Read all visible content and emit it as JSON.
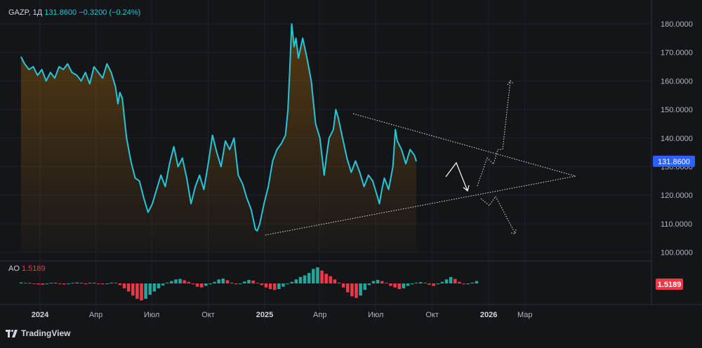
{
  "legend": {
    "symbol": "GAZP, 1Д",
    "price": "131.8600",
    "change": "−0.3200 (−0.24%)"
  },
  "ao_legend": {
    "name": "AO",
    "value": "1.5189"
  },
  "branding": {
    "text": "TradingView"
  },
  "colors": {
    "background": "#141519",
    "line": "#26c6da",
    "price_badge": "#2962ff",
    "ao_up": "#26a69a",
    "ao_down": "#f23645",
    "text": "#d1d4dc",
    "axis_text": "#b2b5be"
  },
  "chart_data": [
    {
      "type": "area",
      "title": "",
      "ylim": [
        98,
        184
      ],
      "y_ticks": [
        100,
        110,
        120,
        130,
        140,
        150,
        160,
        170,
        180
      ],
      "x_ticks": [
        {
          "date": "2024-01-01",
          "label": "2024",
          "bold": true
        },
        {
          "date": "2024-04-01",
          "label": "Апр",
          "bold": false
        },
        {
          "date": "2024-07-01",
          "label": "Июл",
          "bold": false
        },
        {
          "date": "2024-10-01",
          "label": "Окт",
          "bold": false
        },
        {
          "date": "2025-01-01",
          "label": "2025",
          "bold": true
        },
        {
          "date": "2025-04-01",
          "label": "Апр",
          "bold": false
        },
        {
          "date": "2025-07-01",
          "label": "Июл",
          "bold": false
        },
        {
          "date": "2025-10-01",
          "label": "Окт",
          "bold": false
        },
        {
          "date": "2026-01-01",
          "label": "2026",
          "bold": true
        },
        {
          "date": "2026-03-01",
          "label": "Мар",
          "bold": false
        }
      ],
      "last_price": {
        "value": 131.86,
        "label": "131.8600"
      },
      "series": [
        {
          "points": [
            [
              "2023-12-01",
              168.5
            ],
            [
              "2023-12-07",
              166
            ],
            [
              "2023-12-14",
              164
            ],
            [
              "2023-12-21",
              165
            ],
            [
              "2023-12-28",
              162
            ],
            [
              "2024-01-04",
              164
            ],
            [
              "2024-01-11",
              160
            ],
            [
              "2024-01-18",
              163
            ],
            [
              "2024-01-25",
              161
            ],
            [
              "2024-02-01",
              165
            ],
            [
              "2024-02-08",
              164
            ],
            [
              "2024-02-15",
              166
            ],
            [
              "2024-02-22",
              163
            ],
            [
              "2024-03-01",
              162
            ],
            [
              "2024-03-08",
              160
            ],
            [
              "2024-03-15",
              163
            ],
            [
              "2024-03-22",
              159
            ],
            [
              "2024-03-29",
              165
            ],
            [
              "2024-04-05",
              163
            ],
            [
              "2024-04-12",
              161
            ],
            [
              "2024-04-19",
              166
            ],
            [
              "2024-04-26",
              163
            ],
            [
              "2024-05-03",
              158
            ],
            [
              "2024-05-07",
              152
            ],
            [
              "2024-05-10",
              156
            ],
            [
              "2024-05-14",
              154
            ],
            [
              "2024-05-17",
              148
            ],
            [
              "2024-05-21",
              140
            ],
            [
              "2024-05-28",
              132
            ],
            [
              "2024-06-04",
              126
            ],
            [
              "2024-06-11",
              125
            ],
            [
              "2024-06-18",
              119
            ],
            [
              "2024-06-25",
              114
            ],
            [
              "2024-07-02",
              117
            ],
            [
              "2024-07-09",
              122
            ],
            [
              "2024-07-16",
              127
            ],
            [
              "2024-07-23",
              123
            ],
            [
              "2024-07-30",
              131
            ],
            [
              "2024-08-06",
              137
            ],
            [
              "2024-08-13",
              130
            ],
            [
              "2024-08-20",
              133
            ],
            [
              "2024-08-27",
              126
            ],
            [
              "2024-09-03",
              117
            ],
            [
              "2024-09-10",
              123
            ],
            [
              "2024-09-17",
              127
            ],
            [
              "2024-09-24",
              122
            ],
            [
              "2024-10-01",
              131
            ],
            [
              "2024-10-08",
              141
            ],
            [
              "2024-10-15",
              135
            ],
            [
              "2024-10-22",
              130
            ],
            [
              "2024-10-29",
              139
            ],
            [
              "2024-11-05",
              136
            ],
            [
              "2024-11-12",
              140
            ],
            [
              "2024-11-19",
              127
            ],
            [
              "2024-11-26",
              124
            ],
            [
              "2024-12-03",
              119
            ],
            [
              "2024-12-10",
              115
            ],
            [
              "2024-12-17",
              108
            ],
            [
              "2024-12-20",
              107.5
            ],
            [
              "2024-12-24",
              110
            ],
            [
              "2024-12-31",
              117
            ],
            [
              "2025-01-07",
              123
            ],
            [
              "2025-01-14",
              132
            ],
            [
              "2025-01-21",
              136
            ],
            [
              "2025-01-28",
              138
            ],
            [
              "2025-02-04",
              141
            ],
            [
              "2025-02-08",
              150
            ],
            [
              "2025-02-11",
              164
            ],
            [
              "2025-02-14",
              180
            ],
            [
              "2025-02-18",
              172
            ],
            [
              "2025-02-21",
              175
            ],
            [
              "2025-02-25",
              168
            ],
            [
              "2025-03-04",
              175
            ],
            [
              "2025-03-11",
              168
            ],
            [
              "2025-03-18",
              160
            ],
            [
              "2025-03-25",
              145
            ],
            [
              "2025-04-01",
              140
            ],
            [
              "2025-04-08",
              127
            ],
            [
              "2025-04-12",
              134
            ],
            [
              "2025-04-16",
              140
            ],
            [
              "2025-04-23",
              143
            ],
            [
              "2025-04-27",
              150
            ],
            [
              "2025-05-01",
              147
            ],
            [
              "2025-05-08",
              140
            ],
            [
              "2025-05-15",
              133
            ],
            [
              "2025-05-22",
              128
            ],
            [
              "2025-05-29",
              132
            ],
            [
              "2025-06-05",
              128
            ],
            [
              "2025-06-12",
              123
            ],
            [
              "2025-06-19",
              127
            ],
            [
              "2025-06-26",
              125
            ],
            [
              "2025-07-03",
              120
            ],
            [
              "2025-07-07",
              117
            ],
            [
              "2025-07-11",
              122
            ],
            [
              "2025-07-15",
              126
            ],
            [
              "2025-07-22",
              122
            ],
            [
              "2025-07-29",
              130
            ],
            [
              "2025-08-02",
              143
            ],
            [
              "2025-08-05",
              139
            ],
            [
              "2025-08-12",
              136
            ],
            [
              "2025-08-19",
              131
            ],
            [
              "2025-08-26",
              136
            ],
            [
              "2025-09-02",
              134
            ],
            [
              "2025-09-05",
              131.86
            ]
          ]
        }
      ]
    },
    {
      "type": "bar",
      "title": "AO",
      "ylim": [
        -12,
        12
      ],
      "value_label": "1.5189",
      "start_date": "2023-12-01",
      "step_days": 7,
      "values": [
        0.6,
        0.4,
        0.2,
        -0.2,
        -0.6,
        -0.8,
        -0.4,
        0.2,
        0.4,
        -0.2,
        -0.6,
        -0.4,
        0.2,
        0.6,
        0.2,
        -0.3,
        0.2,
        0.4,
        -0.2,
        -0.5,
        -0.2,
        0.5,
        0.3,
        -1,
        -3,
        -5,
        -7.5,
        -9.5,
        -10.5,
        -9.5,
        -7,
        -5,
        -3,
        -1.2,
        0.5,
        1.5,
        2.5,
        2.8,
        2,
        1,
        -0.5,
        -2,
        -2.5,
        -1.5,
        -0.5,
        1,
        2.5,
        3,
        2,
        0.5,
        -0.5,
        -0.2,
        1.2,
        2.2,
        1.8,
        0.2,
        -1,
        -2.5,
        -3.5,
        -4,
        -3.5,
        -2,
        -0.5,
        1,
        2.5,
        4,
        5,
        6.5,
        9,
        10,
        8,
        6,
        4.5,
        2.5,
        0.5,
        -2.5,
        -5.5,
        -8,
        -9,
        -7.5,
        -4,
        -1,
        1.5,
        2.2,
        1.5,
        0,
        -1.5,
        -2.5,
        -3.5,
        -3,
        -1.5,
        -0.5,
        0.5,
        0.8,
        0.2,
        -0.8,
        -1.5,
        -0.5,
        1,
        2.5,
        4,
        2.8,
        1,
        -0.5,
        -0.5,
        0.5,
        1.5
      ]
    }
  ]
}
